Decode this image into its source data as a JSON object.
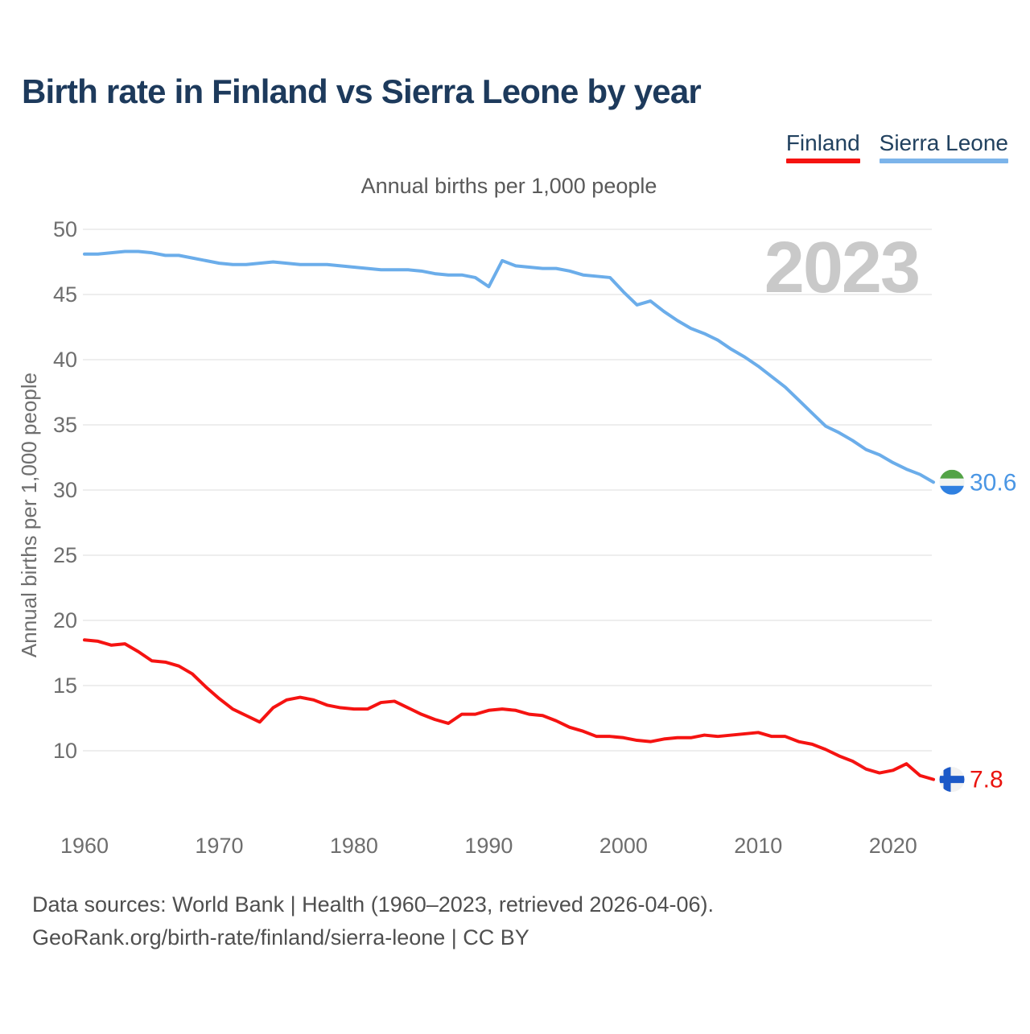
{
  "page": {
    "title": "Birth rate in Finland vs Sierra Leone by year",
    "legend": [
      {
        "label": "Finland",
        "color": "#f51311"
      },
      {
        "label": "Sierra Leone",
        "color": "#7cb4ea"
      }
    ],
    "footer_line1": "Data sources: World Bank | Health (1960–2023, retrieved 2026-04-06).",
    "footer_line2": "GeoRank.org/birth-rate/finland/sierra-leone | CC BY"
  },
  "chart_data": {
    "type": "line",
    "title": "Annual births per 1,000 people",
    "ylabel": "Annual births per 1,000 people",
    "watermark": "2023",
    "grid": "horizontal",
    "legend_position": "top-right",
    "xlim": [
      1960,
      2023
    ],
    "ylim": [
      7,
      51
    ],
    "x_ticks": [
      1960,
      1970,
      1980,
      1990,
      2000,
      2010,
      2020
    ],
    "y_ticks": [
      50,
      45,
      40,
      35,
      30,
      25,
      20,
      15,
      10
    ],
    "x": [
      1960,
      1961,
      1962,
      1963,
      1964,
      1965,
      1966,
      1967,
      1968,
      1969,
      1970,
      1971,
      1972,
      1973,
      1974,
      1975,
      1976,
      1977,
      1978,
      1979,
      1980,
      1981,
      1982,
      1983,
      1984,
      1985,
      1986,
      1987,
      1988,
      1989,
      1990,
      1991,
      1992,
      1993,
      1994,
      1995,
      1996,
      1997,
      1998,
      1999,
      2000,
      2001,
      2002,
      2003,
      2004,
      2005,
      2006,
      2007,
      2008,
      2009,
      2010,
      2011,
      2012,
      2013,
      2014,
      2015,
      2016,
      2017,
      2018,
      2019,
      2020,
      2021,
      2022,
      2023
    ],
    "series": [
      {
        "name": "Finland",
        "color": "#f51311",
        "flag": "finland",
        "flag_colors": {
          "background": "#f2f2f2",
          "cross": "#1c59c8"
        },
        "end_label": "7.8",
        "end_label_color": "#ea140f",
        "values": [
          18.5,
          18.4,
          18.1,
          18.2,
          17.6,
          16.9,
          16.8,
          16.5,
          15.9,
          14.9,
          14.0,
          13.2,
          12.7,
          12.2,
          13.3,
          13.9,
          14.1,
          13.9,
          13.5,
          13.3,
          13.2,
          13.2,
          13.7,
          13.8,
          13.3,
          12.8,
          12.4,
          12.1,
          12.8,
          12.8,
          13.1,
          13.2,
          13.1,
          12.8,
          12.7,
          12.3,
          11.8,
          11.5,
          11.1,
          11.1,
          11.0,
          10.8,
          10.7,
          10.9,
          11.0,
          11.0,
          11.2,
          11.1,
          11.2,
          11.3,
          11.4,
          11.1,
          11.1,
          10.7,
          10.5,
          10.1,
          9.6,
          9.2,
          8.6,
          8.3,
          8.5,
          9.0,
          8.1,
          7.8
        ]
      },
      {
        "name": "Sierra Leone",
        "color": "#6badea",
        "flag": "sierra-leone",
        "flag_colors": {
          "green": "#53a346",
          "white": "#f2f5f2",
          "blue": "#2f80e0"
        },
        "end_label": "30.6",
        "end_label_color": "#4a96e4",
        "values": [
          48.1,
          48.1,
          48.2,
          48.3,
          48.3,
          48.2,
          48.0,
          48.0,
          47.8,
          47.6,
          47.4,
          47.3,
          47.3,
          47.4,
          47.5,
          47.4,
          47.3,
          47.3,
          47.3,
          47.2,
          47.1,
          47.0,
          46.9,
          46.9,
          46.9,
          46.8,
          46.6,
          46.5,
          46.5,
          46.3,
          45.6,
          47.6,
          47.2,
          47.1,
          47.0,
          47.0,
          46.8,
          46.5,
          46.4,
          46.3,
          45.2,
          44.2,
          44.5,
          43.7,
          43.0,
          42.4,
          42.0,
          41.5,
          40.8,
          40.2,
          39.5,
          38.7,
          37.9,
          36.9,
          35.9,
          34.9,
          34.4,
          33.8,
          33.1,
          32.7,
          32.1,
          31.6,
          31.2,
          30.6
        ]
      }
    ]
  }
}
